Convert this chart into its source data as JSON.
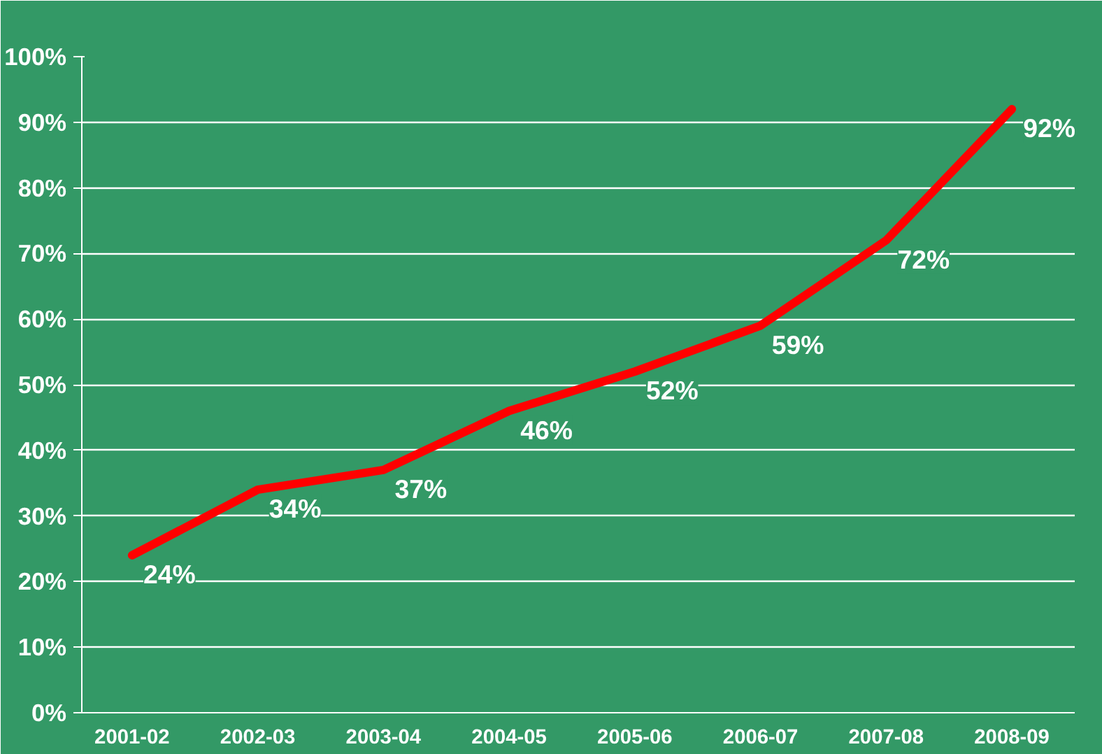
{
  "chart_data": {
    "type": "line",
    "categories": [
      "2001-02",
      "2002-03",
      "2003-04",
      "2004-05",
      "2005-06",
      "2006-07",
      "2007-08",
      "2008-09"
    ],
    "values": [
      24,
      34,
      37,
      46,
      52,
      59,
      72,
      92
    ],
    "color": "#ff0000",
    "ylim": [
      0,
      100
    ],
    "yticks": [
      {
        "value": 0,
        "label": "0%"
      },
      {
        "value": 10,
        "label": "10%"
      },
      {
        "value": 20,
        "label": "20%"
      },
      {
        "value": 30,
        "label": "30%"
      },
      {
        "value": 40,
        "label": "40%"
      },
      {
        "value": 50,
        "label": "50%"
      },
      {
        "value": 60,
        "label": "60%"
      },
      {
        "value": 70,
        "label": "70%"
      },
      {
        "value": 80,
        "label": "80%"
      },
      {
        "value": 90,
        "label": "90%"
      },
      {
        "value": 100,
        "label": "100%"
      }
    ],
    "value_labels": [
      "24%",
      "34%",
      "37%",
      "46%",
      "52%",
      "59%",
      "72%",
      "92%"
    ],
    "grid": "y"
  }
}
